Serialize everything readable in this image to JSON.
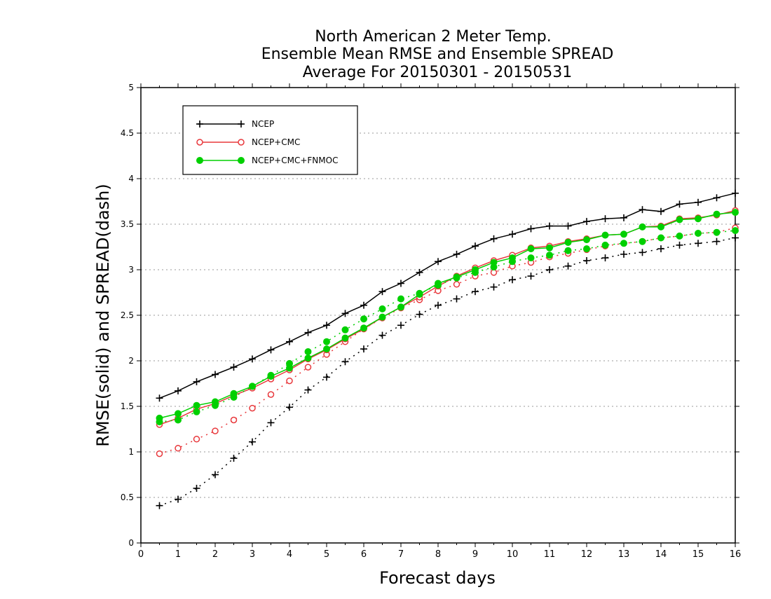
{
  "chart_data": {
    "type": "line",
    "title": [
      "North American 2 Meter Temp.",
      "Ensemble Mean RMSE and Ensemble SPREAD",
      "Average For 20150301 - 20150531"
    ],
    "xlabel": "Forecast days",
    "ylabel": "RMSE(solid) and SPREAD(dash)",
    "xlim": [
      0,
      16
    ],
    "ylim": [
      0,
      5
    ],
    "xticks": [
      "0",
      "1",
      "2",
      "3",
      "4",
      "5",
      "6",
      "7",
      "8",
      "9",
      "10",
      "11",
      "12",
      "13",
      "14",
      "15",
      "16"
    ],
    "yticks": [
      "0",
      "0.5",
      "1",
      "1.5",
      "2",
      "2.5",
      "3",
      "3.5",
      "4",
      "4.5",
      "5"
    ],
    "grid": "horizontal dotted",
    "legend_position": "top-left",
    "x": [
      0.5,
      1,
      1.5,
      2,
      2.5,
      3,
      3.5,
      4,
      4.5,
      5,
      5.5,
      6,
      6.5,
      7,
      7.5,
      8,
      8.5,
      9,
      9.5,
      10,
      10.5,
      11,
      11.5,
      12,
      12.5,
      13,
      13.5,
      14,
      14.5,
      15,
      15.5,
      16
    ],
    "series": [
      {
        "name": "NCEP",
        "color": "#000000",
        "marker": "plus",
        "rmse": [
          1.59,
          1.67,
          1.77,
          1.85,
          1.93,
          2.02,
          2.12,
          2.21,
          2.31,
          2.39,
          2.52,
          2.61,
          2.76,
          2.85,
          2.97,
          3.09,
          3.17,
          3.26,
          3.34,
          3.39,
          3.45,
          3.48,
          3.48,
          3.53,
          3.56,
          3.57,
          3.66,
          3.64,
          3.72,
          3.74,
          3.79,
          3.84
        ],
        "spread": [
          0.41,
          0.48,
          0.6,
          0.75,
          0.93,
          1.11,
          1.32,
          1.49,
          1.68,
          1.82,
          1.99,
          2.13,
          2.28,
          2.39,
          2.51,
          2.61,
          2.68,
          2.76,
          2.81,
          2.89,
          2.93,
          3.0,
          3.04,
          3.1,
          3.13,
          3.17,
          3.19,
          3.23,
          3.27,
          3.29,
          3.31,
          3.35
        ]
      },
      {
        "name": "NCEP+CMC",
        "color": "#e8383c",
        "marker": "open-circle",
        "rmse": [
          1.3,
          1.37,
          1.47,
          1.53,
          1.62,
          1.7,
          1.8,
          1.9,
          2.02,
          2.12,
          2.24,
          2.35,
          2.48,
          2.59,
          2.7,
          2.82,
          2.93,
          3.02,
          3.1,
          3.16,
          3.24,
          3.26,
          3.31,
          3.34,
          3.38,
          3.39,
          3.47,
          3.48,
          3.56,
          3.57,
          3.6,
          3.65
        ],
        "spread": [
          0.98,
          1.04,
          1.14,
          1.23,
          1.35,
          1.48,
          1.63,
          1.78,
          1.93,
          2.07,
          2.21,
          2.35,
          2.47,
          2.58,
          2.67,
          2.77,
          2.84,
          2.93,
          2.97,
          3.04,
          3.08,
          3.14,
          3.18,
          3.22,
          3.26,
          3.29,
          3.31,
          3.35,
          3.37,
          3.4,
          3.41,
          3.46
        ]
      },
      {
        "name": "NCEP+CMC+FNMOC",
        "color": "#00d000",
        "marker": "filled-circle",
        "rmse": [
          1.37,
          1.42,
          1.51,
          1.55,
          1.64,
          1.72,
          1.83,
          1.92,
          2.03,
          2.13,
          2.25,
          2.36,
          2.48,
          2.59,
          2.73,
          2.85,
          2.92,
          3.0,
          3.08,
          3.13,
          3.23,
          3.24,
          3.3,
          3.33,
          3.38,
          3.39,
          3.47,
          3.47,
          3.55,
          3.56,
          3.61,
          3.63
        ],
        "spread": [
          1.33,
          1.35,
          1.44,
          1.51,
          1.6,
          1.72,
          1.84,
          1.97,
          2.1,
          2.21,
          2.34,
          2.46,
          2.57,
          2.68,
          2.74,
          2.83,
          2.91,
          2.97,
          3.03,
          3.09,
          3.13,
          3.16,
          3.21,
          3.23,
          3.27,
          3.29,
          3.31,
          3.35,
          3.37,
          3.4,
          3.41,
          3.43
        ]
      }
    ]
  }
}
